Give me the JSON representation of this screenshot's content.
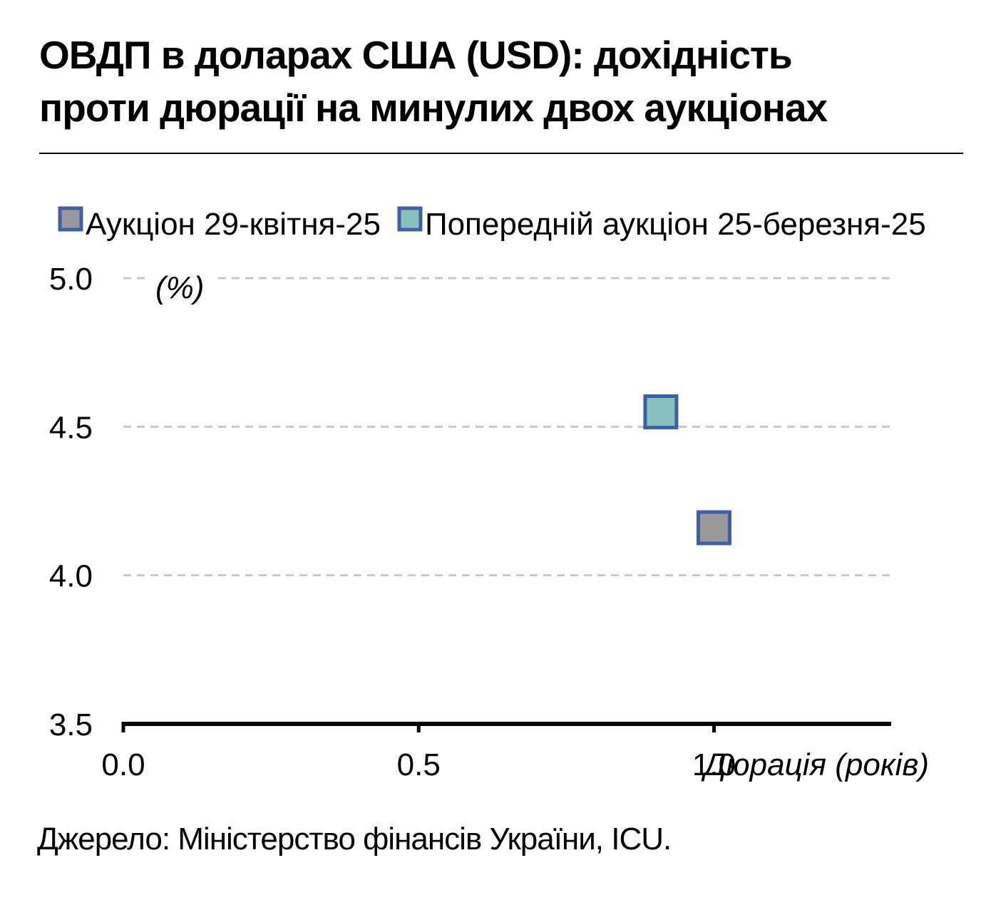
{
  "header": {
    "title_line1": "ОВДП в доларах США (USD): дохідність",
    "title_line2": "проти дюрації на минулих двох аукціонах"
  },
  "footer": {
    "source": "Джерело: Міністерство фінансів України, ICU."
  },
  "chart_data": {
    "type": "scatter",
    "xlabel": "Дюрація (років)",
    "ylabel": "(%)",
    "xlim": [
      0,
      1.3
    ],
    "ylim": [
      3.5,
      5.0
    ],
    "x_ticks": [
      "0.0",
      "0.5",
      "1.0"
    ],
    "y_ticks": [
      "3.5",
      "4.0",
      "4.5",
      "5.0"
    ],
    "grid": "horizontal dashed",
    "legend": "top",
    "series": [
      {
        "name": "Аукціон 29-квітня-25",
        "color": "#999999",
        "edge": "#3f5fa8",
        "points": [
          {
            "x": 1.0,
            "y": 4.16
          }
        ]
      },
      {
        "name": "Попередній аукціон 25-березня-25",
        "color": "#88c0bd",
        "edge": "#3f5fa8",
        "points": [
          {
            "x": 0.91,
            "y": 4.55
          }
        ]
      }
    ]
  }
}
